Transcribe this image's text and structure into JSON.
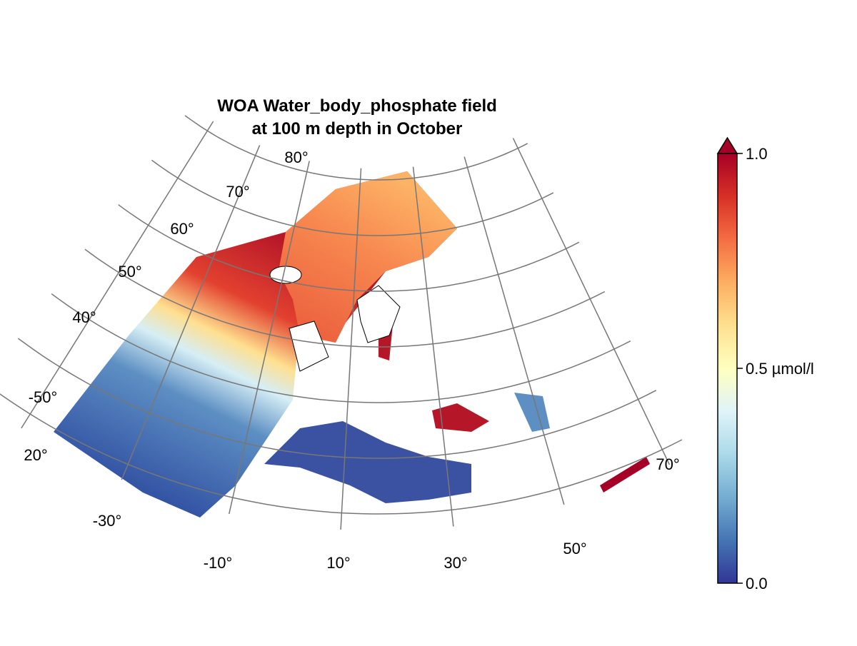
{
  "title": [
    "WOA Water_body_phosphate field",
    "at 100 m depth in October"
  ],
  "meridian_labels": [
    "-50°",
    "-30°",
    "-10°",
    "10°",
    "30°",
    "50°",
    "70°"
  ],
  "parallel_labels": [
    "20°",
    "40°",
    "50°",
    "60°",
    "70°",
    "80°"
  ],
  "colorbar": {
    "lim": [
      0,
      1
    ],
    "ticks": [
      {
        "value": 0,
        "label": "0.0"
      },
      {
        "value": 0.5,
        "label": "0.5 µmol/l"
      },
      {
        "value": 1,
        "label": "1.0"
      }
    ],
    "colors": [
      "#313695",
      "#4575b4",
      "#74add1",
      "#abd9e9",
      "#e0f3f8",
      "#ffffbf",
      "#fee090",
      "#fdae61",
      "#f46d43",
      "#d73027",
      "#a50026"
    ]
  }
}
